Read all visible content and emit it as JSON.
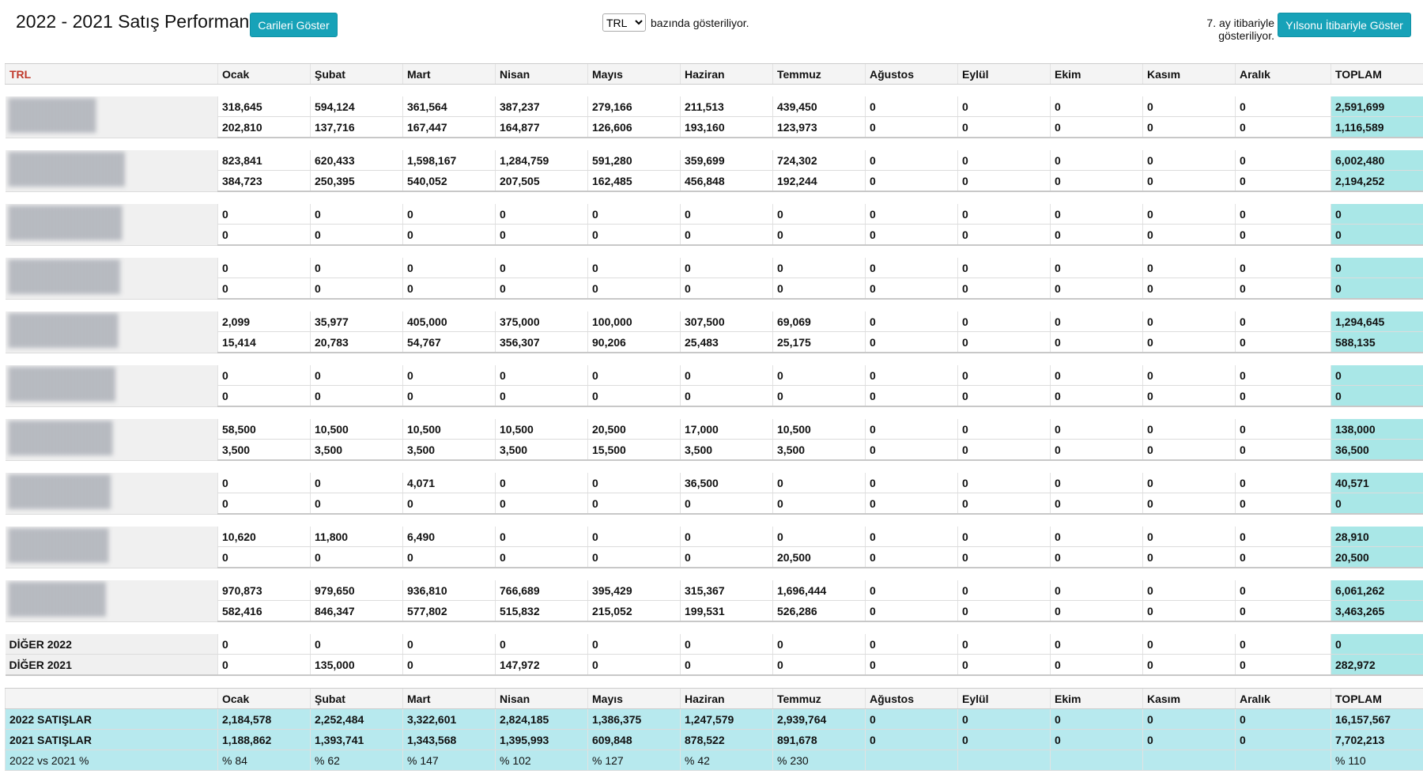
{
  "header": {
    "title": "2022 - 2021 Satış Performansları",
    "show_accounts_button": "Carileri Göster",
    "currency": "TRL",
    "currency_note": "bazında gösteriliyor.",
    "period_note": "7. ay itibariyle gösteriliyor.",
    "year_end_button": "Yılsonu İtibariyle Göster"
  },
  "table": {
    "corner": "TRL",
    "columns": [
      "Ocak",
      "Şubat",
      "Mart",
      "Nisan",
      "Mayıs",
      "Haziran",
      "Temmuz",
      "Ağustos",
      "Eylül",
      "Ekim",
      "Kasım",
      "Aralık",
      "TOPLAM"
    ],
    "groups": [
      {
        "rows": [
          [
            "318,645",
            "594,124",
            "361,564",
            "387,237",
            "279,166",
            "211,513",
            "439,450",
            "0",
            "0",
            "0",
            "0",
            "0",
            "2,591,699"
          ],
          [
            "202,810",
            "137,716",
            "167,447",
            "164,877",
            "126,606",
            "193,160",
            "123,973",
            "0",
            "0",
            "0",
            "0",
            "0",
            "1,116,589"
          ]
        ]
      },
      {
        "rows": [
          [
            "823,841",
            "620,433",
            "1,598,167",
            "1,284,759",
            "591,280",
            "359,699",
            "724,302",
            "0",
            "0",
            "0",
            "0",
            "0",
            "6,002,480"
          ],
          [
            "384,723",
            "250,395",
            "540,052",
            "207,505",
            "162,485",
            "456,848",
            "192,244",
            "0",
            "0",
            "0",
            "0",
            "0",
            "2,194,252"
          ]
        ]
      },
      {
        "rows": [
          [
            "0",
            "0",
            "0",
            "0",
            "0",
            "0",
            "0",
            "0",
            "0",
            "0",
            "0",
            "0",
            "0"
          ],
          [
            "0",
            "0",
            "0",
            "0",
            "0",
            "0",
            "0",
            "0",
            "0",
            "0",
            "0",
            "0",
            "0"
          ]
        ]
      },
      {
        "rows": [
          [
            "0",
            "0",
            "0",
            "0",
            "0",
            "0",
            "0",
            "0",
            "0",
            "0",
            "0",
            "0",
            "0"
          ],
          [
            "0",
            "0",
            "0",
            "0",
            "0",
            "0",
            "0",
            "0",
            "0",
            "0",
            "0",
            "0",
            "0"
          ]
        ]
      },
      {
        "rows": [
          [
            "2,099",
            "35,977",
            "405,000",
            "375,000",
            "100,000",
            "307,500",
            "69,069",
            "0",
            "0",
            "0",
            "0",
            "0",
            "1,294,645"
          ],
          [
            "15,414",
            "20,783",
            "54,767",
            "356,307",
            "90,206",
            "25,483",
            "25,175",
            "0",
            "0",
            "0",
            "0",
            "0",
            "588,135"
          ]
        ]
      },
      {
        "rows": [
          [
            "0",
            "0",
            "0",
            "0",
            "0",
            "0",
            "0",
            "0",
            "0",
            "0",
            "0",
            "0",
            "0"
          ],
          [
            "0",
            "0",
            "0",
            "0",
            "0",
            "0",
            "0",
            "0",
            "0",
            "0",
            "0",
            "0",
            "0"
          ]
        ]
      },
      {
        "rows": [
          [
            "58,500",
            "10,500",
            "10,500",
            "10,500",
            "20,500",
            "17,000",
            "10,500",
            "0",
            "0",
            "0",
            "0",
            "0",
            "138,000"
          ],
          [
            "3,500",
            "3,500",
            "3,500",
            "3,500",
            "15,500",
            "3,500",
            "3,500",
            "0",
            "0",
            "0",
            "0",
            "0",
            "36,500"
          ]
        ]
      },
      {
        "rows": [
          [
            "0",
            "0",
            "4,071",
            "0",
            "0",
            "36,500",
            "0",
            "0",
            "0",
            "0",
            "0",
            "0",
            "40,571"
          ],
          [
            "0",
            "0",
            "0",
            "0",
            "0",
            "0",
            "0",
            "0",
            "0",
            "0",
            "0",
            "0",
            "0"
          ]
        ]
      },
      {
        "rows": [
          [
            "10,620",
            "11,800",
            "6,490",
            "0",
            "0",
            "0",
            "0",
            "0",
            "0",
            "0",
            "0",
            "0",
            "28,910"
          ],
          [
            "0",
            "0",
            "0",
            "0",
            "0",
            "0",
            "20,500",
            "0",
            "0",
            "0",
            "0",
            "0",
            "20,500"
          ]
        ]
      },
      {
        "rows": [
          [
            "970,873",
            "979,650",
            "936,810",
            "766,689",
            "395,429",
            "315,367",
            "1,696,444",
            "0",
            "0",
            "0",
            "0",
            "0",
            "6,061,262"
          ],
          [
            "582,416",
            "846,347",
            "577,802",
            "515,832",
            "215,052",
            "199,531",
            "526,286",
            "0",
            "0",
            "0",
            "0",
            "0",
            "3,463,265"
          ]
        ]
      }
    ],
    "other": {
      "rows": [
        {
          "label": "DİĞER 2022",
          "cells": [
            "0",
            "0",
            "0",
            "0",
            "0",
            "0",
            "0",
            "0",
            "0",
            "0",
            "0",
            "0",
            "0"
          ]
        },
        {
          "label": "DİĞER 2021",
          "cells": [
            "0",
            "135,000",
            "0",
            "147,972",
            "0",
            "0",
            "0",
            "0",
            "0",
            "0",
            "0",
            "0",
            "282,972"
          ]
        }
      ]
    }
  },
  "summary": {
    "rows": [
      {
        "label": "2022 SATIŞLAR",
        "cells": [
          "2,184,578",
          "2,252,484",
          "3,322,601",
          "2,824,185",
          "1,386,375",
          "1,247,579",
          "2,939,764",
          "0",
          "0",
          "0",
          "0",
          "0",
          "16,157,567"
        ]
      },
      {
        "label": "2021 SATIŞLAR",
        "cells": [
          "1,188,862",
          "1,393,741",
          "1,343,568",
          "1,395,993",
          "609,848",
          "878,522",
          "891,678",
          "0",
          "0",
          "0",
          "0",
          "0",
          "7,702,213"
        ]
      }
    ],
    "percent": {
      "label": "2022 vs 2021 %",
      "cells": [
        "% 84",
        "% 62",
        "% 147",
        "% 102",
        "% 127",
        "% 42",
        "% 230"
      ],
      "total": "% 110"
    }
  }
}
